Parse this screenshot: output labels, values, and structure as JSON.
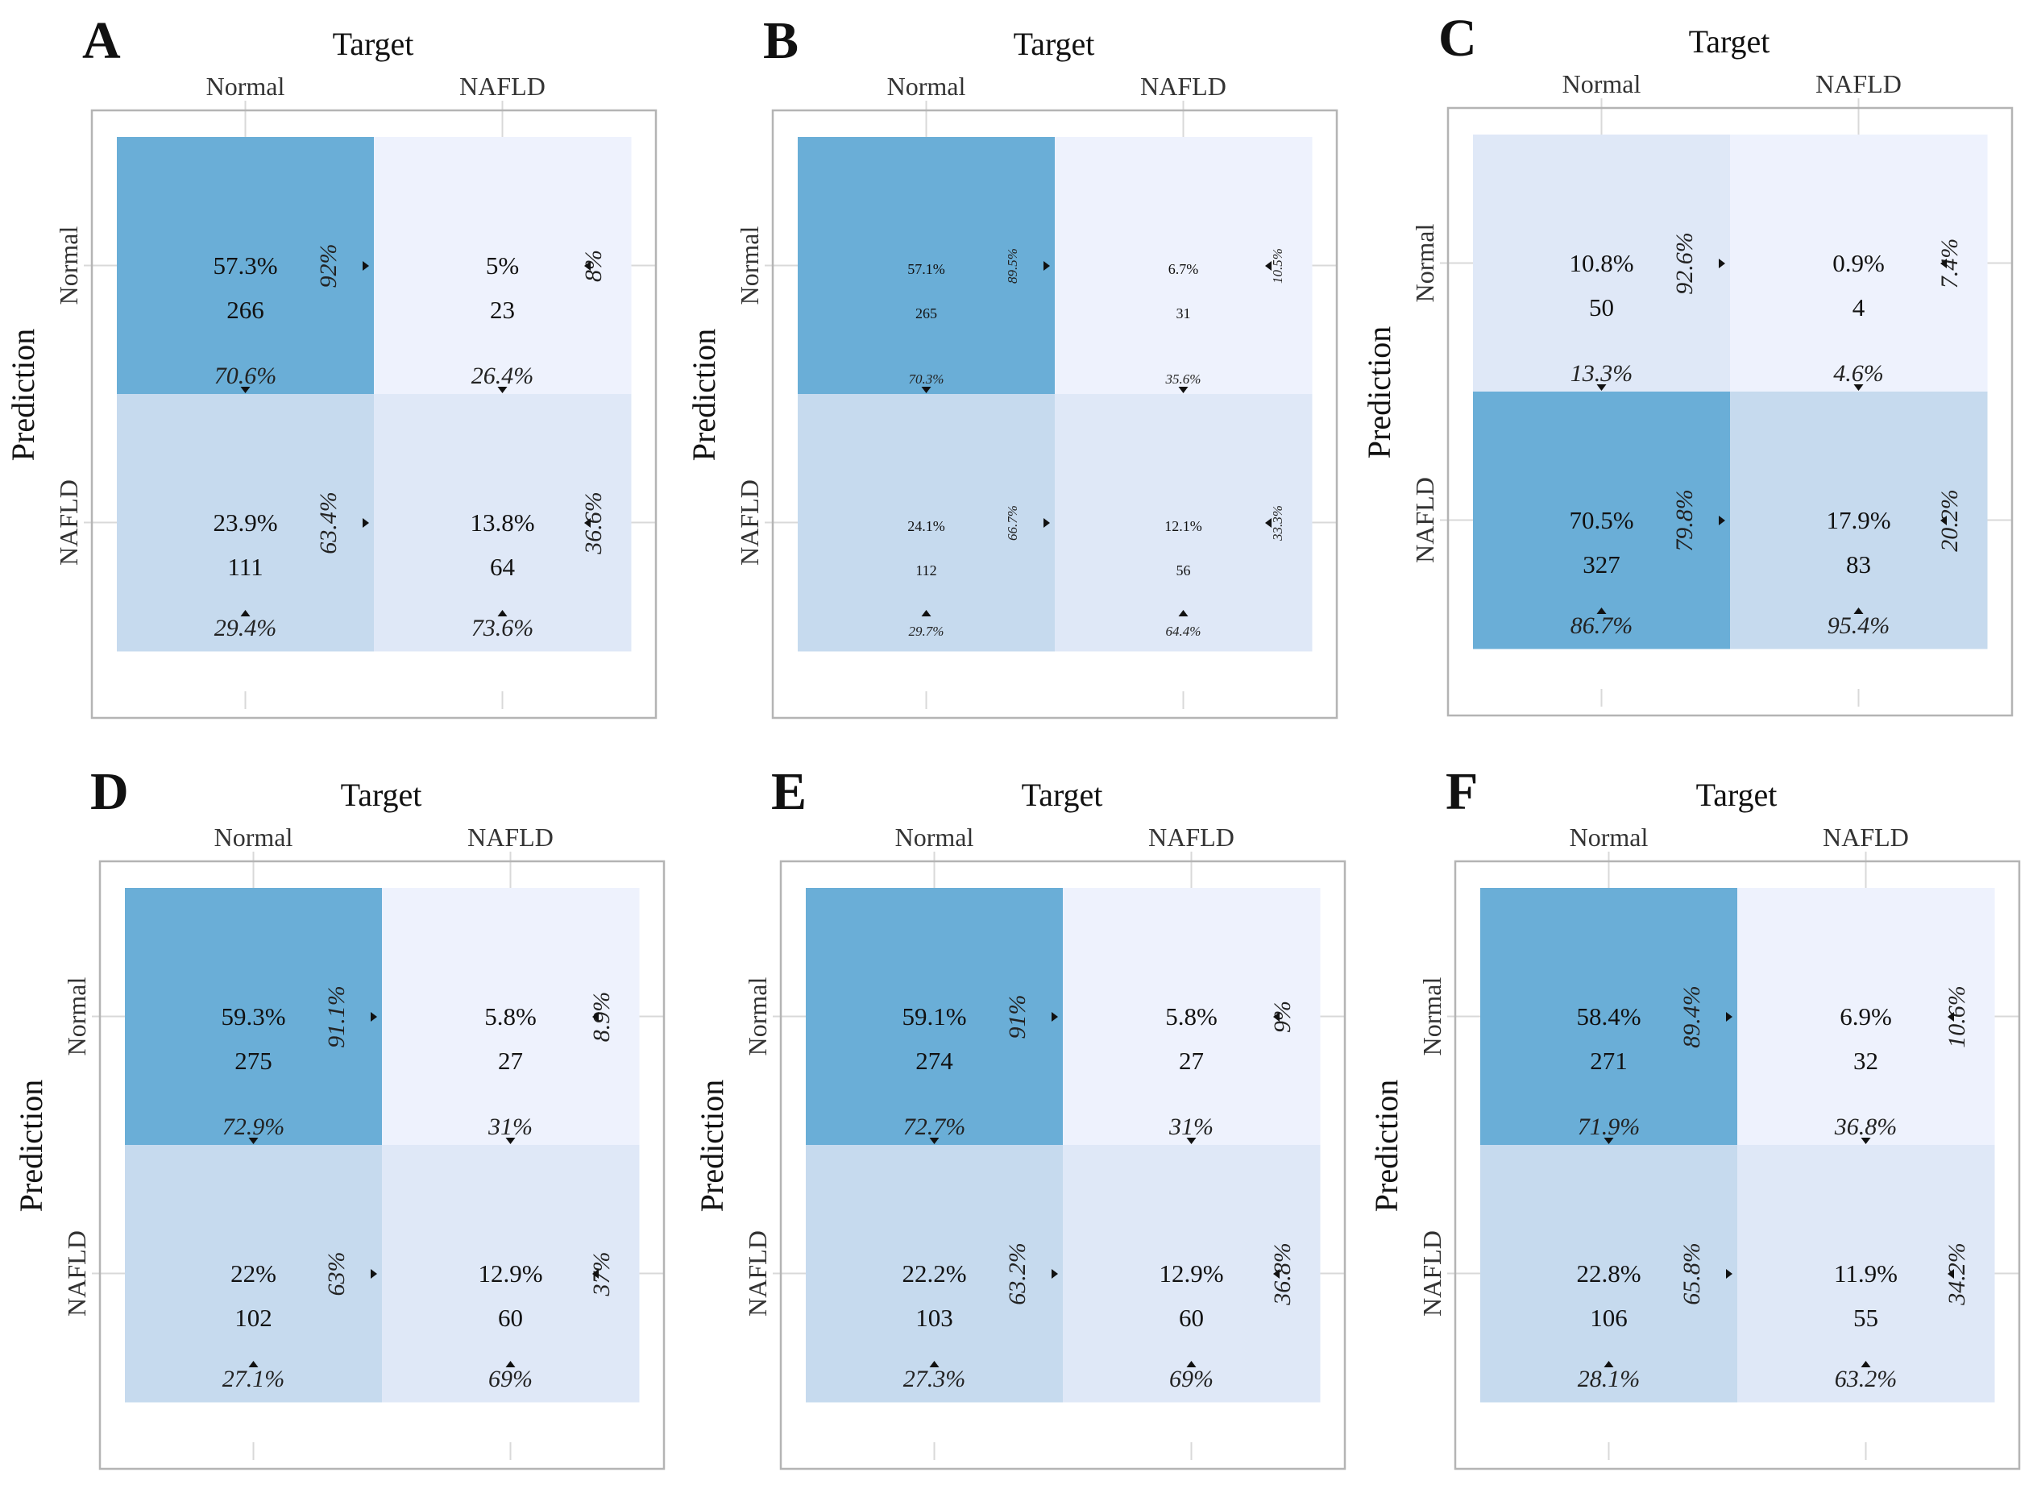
{
  "colors": {
    "dark": "#6aaed7",
    "mid": "#c6daee",
    "light": "#dfe8f7",
    "lightest": "#eef2fd",
    "frame": "#b4b4b4"
  },
  "axis_titles": {
    "target": "Target",
    "prediction": "Prediction"
  },
  "class_labels": [
    "Normal",
    "NAFLD"
  ],
  "chart_data": [
    {
      "type": "heatmap",
      "panel": "A",
      "xlabel": "Target",
      "ylabel": "Prediction",
      "columns": [
        "Normal",
        "NAFLD"
      ],
      "rows": [
        "Normal",
        "NAFLD"
      ],
      "cells": [
        [
          {
            "pct": "57.3%",
            "count": "266",
            "row_pct": "92%",
            "col_pct": "70.6%",
            "shade": "dark"
          },
          {
            "pct": "5%",
            "count": "23",
            "row_pct": "8%",
            "col_pct": "26.4%",
            "shade": "lightest"
          }
        ],
        [
          {
            "pct": "23.9%",
            "count": "111",
            "row_pct": "63.4%",
            "col_pct": "29.4%",
            "shade": "mid"
          },
          {
            "pct": "13.8%",
            "count": "64",
            "row_pct": "36.6%",
            "col_pct": "73.6%",
            "shade": "light"
          }
        ]
      ]
    },
    {
      "type": "heatmap",
      "panel": "B",
      "xlabel": "Target",
      "ylabel": "Prediction",
      "columns": [
        "Normal",
        "NAFLD"
      ],
      "rows": [
        "Normal",
        "NAFLD"
      ],
      "small_text": true,
      "cells": [
        [
          {
            "pct": "57.1%",
            "count": "265",
            "row_pct": "89.5%",
            "col_pct": "70.3%",
            "shade": "dark"
          },
          {
            "pct": "6.7%",
            "count": "31",
            "row_pct": "10.5%",
            "col_pct": "35.6%",
            "shade": "lightest"
          }
        ],
        [
          {
            "pct": "24.1%",
            "count": "112",
            "row_pct": "66.7%",
            "col_pct": "29.7%",
            "shade": "mid"
          },
          {
            "pct": "12.1%",
            "count": "56",
            "row_pct": "33.3%",
            "col_pct": "64.4%",
            "shade": "light"
          }
        ]
      ]
    },
    {
      "type": "heatmap",
      "panel": "C",
      "xlabel": "Target",
      "ylabel": "Prediction",
      "columns": [
        "Normal",
        "NAFLD"
      ],
      "rows": [
        "Normal",
        "NAFLD"
      ],
      "cells": [
        [
          {
            "pct": "10.8%",
            "count": "50",
            "row_pct": "92.6%",
            "col_pct": "13.3%",
            "shade": "light"
          },
          {
            "pct": "0.9%",
            "count": "4",
            "row_pct": "7.4%",
            "col_pct": "4.6%",
            "shade": "lightest"
          }
        ],
        [
          {
            "pct": "70.5%",
            "count": "327",
            "row_pct": "79.8%",
            "col_pct": "86.7%",
            "shade": "dark"
          },
          {
            "pct": "17.9%",
            "count": "83",
            "row_pct": "20.2%",
            "col_pct": "95.4%",
            "shade": "mid"
          }
        ]
      ]
    },
    {
      "type": "heatmap",
      "panel": "D",
      "xlabel": "Target",
      "ylabel": "Prediction",
      "columns": [
        "Normal",
        "NAFLD"
      ],
      "rows": [
        "Normal",
        "NAFLD"
      ],
      "cells": [
        [
          {
            "pct": "59.3%",
            "count": "275",
            "row_pct": "91.1%",
            "col_pct": "72.9%",
            "shade": "dark"
          },
          {
            "pct": "5.8%",
            "count": "27",
            "row_pct": "8.9%",
            "col_pct": "31%",
            "shade": "lightest"
          }
        ],
        [
          {
            "pct": "22%",
            "count": "102",
            "row_pct": "63%",
            "col_pct": "27.1%",
            "shade": "mid"
          },
          {
            "pct": "12.9%",
            "count": "60",
            "row_pct": "37%",
            "col_pct": "69%",
            "shade": "light"
          }
        ]
      ]
    },
    {
      "type": "heatmap",
      "panel": "E",
      "xlabel": "Target",
      "ylabel": "Prediction",
      "columns": [
        "Normal",
        "NAFLD"
      ],
      "rows": [
        "Normal",
        "NAFLD"
      ],
      "cells": [
        [
          {
            "pct": "59.1%",
            "count": "274",
            "row_pct": "91%",
            "col_pct": "72.7%",
            "shade": "dark"
          },
          {
            "pct": "5.8%",
            "count": "27",
            "row_pct": "9%",
            "col_pct": "31%",
            "shade": "lightest"
          }
        ],
        [
          {
            "pct": "22.2%",
            "count": "103",
            "row_pct": "63.2%",
            "col_pct": "27.3%",
            "shade": "mid"
          },
          {
            "pct": "12.9%",
            "count": "60",
            "row_pct": "36.8%",
            "col_pct": "69%",
            "shade": "light"
          }
        ]
      ]
    },
    {
      "type": "heatmap",
      "panel": "F",
      "xlabel": "Target",
      "ylabel": "Prediction",
      "columns": [
        "Normal",
        "NAFLD"
      ],
      "rows": [
        "Normal",
        "NAFLD"
      ],
      "cells": [
        [
          {
            "pct": "58.4%",
            "count": "271",
            "row_pct": "89.4%",
            "col_pct": "71.9%",
            "shade": "dark"
          },
          {
            "pct": "6.9%",
            "count": "32",
            "row_pct": "10.6%",
            "col_pct": "36.8%",
            "shade": "lightest"
          }
        ],
        [
          {
            "pct": "22.8%",
            "count": "106",
            "row_pct": "65.8%",
            "col_pct": "28.1%",
            "shade": "mid"
          },
          {
            "pct": "11.9%",
            "count": "55",
            "row_pct": "34.2%",
            "col_pct": "63.2%",
            "shade": "light"
          }
        ]
      ]
    }
  ]
}
